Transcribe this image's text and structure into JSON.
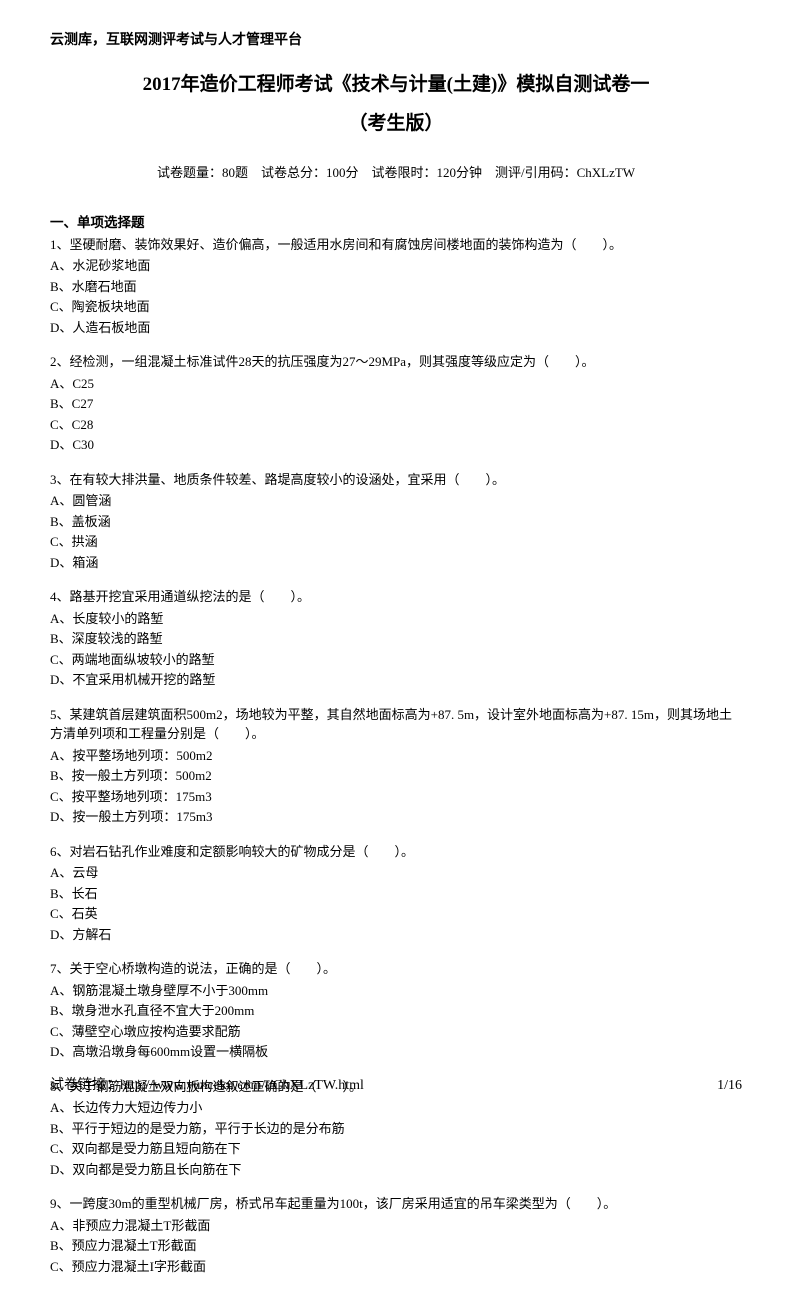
{
  "header": "云测库，互联网测评考试与人才管理平台",
  "title": "2017年造价工程师考试《技术与计量(土建)》模拟自测试卷一",
  "subtitle": "（考生版）",
  "info": "试卷题量：80题　试卷总分：100分　试卷限时：120分钟　测评/引用码：ChXLzTW",
  "section1_title": "一、单项选择题",
  "questions": [
    {
      "text": "1、坚硬耐磨、装饰效果好、造价偏高，一般适用水房间和有腐蚀房间楼地面的装饰构造为（　　）。",
      "options": [
        "A、水泥砂浆地面",
        "B、水磨石地面",
        "C、陶瓷板块地面",
        "D、人造石板地面"
      ]
    },
    {
      "text": "2、经检测，一组混凝土标准试件28天的抗压强度为27～29MPa，则其强度等级应定为（　　）。",
      "options": [
        "A、C25",
        "B、C27",
        "C、C28",
        "D、C30"
      ]
    },
    {
      "text": "3、在有较大排洪量、地质条件较差、路堤高度较小的设涵处，宜采用（　　）。",
      "options": [
        "A、圆管涵",
        "B、盖板涵",
        "C、拱涵",
        "D、箱涵"
      ]
    },
    {
      "text": "4、路基开挖宜采用通道纵挖法的是（　　）。",
      "options": [
        "A、长度较小的路堑",
        "B、深度较浅的路堑",
        "C、两端地面纵坡较小的路堑",
        "D、不宜采用机械开挖的路堑"
      ]
    },
    {
      "text": "5、某建筑首层建筑面积500m2，场地较为平整，其自然地面标高为+87. 5m，设计室外地面标高为+87. 15m，则其场地土方清单列项和工程量分别是（　　）。",
      "options": [
        "A、按平整场地列项：500m2",
        "B、按一般土方列项：500m2",
        "C、按平整场地列项：175m3",
        "D、按一般土方列项：175m3"
      ]
    },
    {
      "text": "6、对岩石钻孔作业难度和定额影响较大的矿物成分是（　　）。",
      "options": [
        "A、云母",
        "B、长石",
        "C、石英",
        "D、方解石"
      ]
    },
    {
      "text": "7、关于空心桥墩构造的说法，正确的是（　　）。",
      "options": [
        "A、钢筋混凝土墩身壁厚不小于300mm",
        "B、墩身泄水孔直径不宜大于200mm",
        "C、薄壁空心墩应按构造要求配筋",
        "D、高墩沿墩身每600mm设置一横隔板"
      ]
    },
    {
      "text": "8、关于钢筋混凝土双向板构造叙述正确的是（　　）。",
      "options": [
        "A、长边传力大短边传力小",
        "B、平行于短边的是受力筋，平行于长边的是分布筋",
        "C、双向都是受力筋且短向筋在下",
        "D、双向都是受力筋且长向筋在下"
      ]
    },
    {
      "text": "9、一跨度30m的重型机械厂房，桥式吊车起重量为100t，该厂房采用适宜的吊车梁类型为（　　）。",
      "options": [
        "A、非预应力混凝土T形截面",
        "B、预应力混凝土T形截面",
        "C、预应力混凝土I字形截面"
      ]
    }
  ],
  "footer_left": "试卷链接：http://www.yunceku.com/t/ChXLzTW.html",
  "footer_right": "1/16"
}
